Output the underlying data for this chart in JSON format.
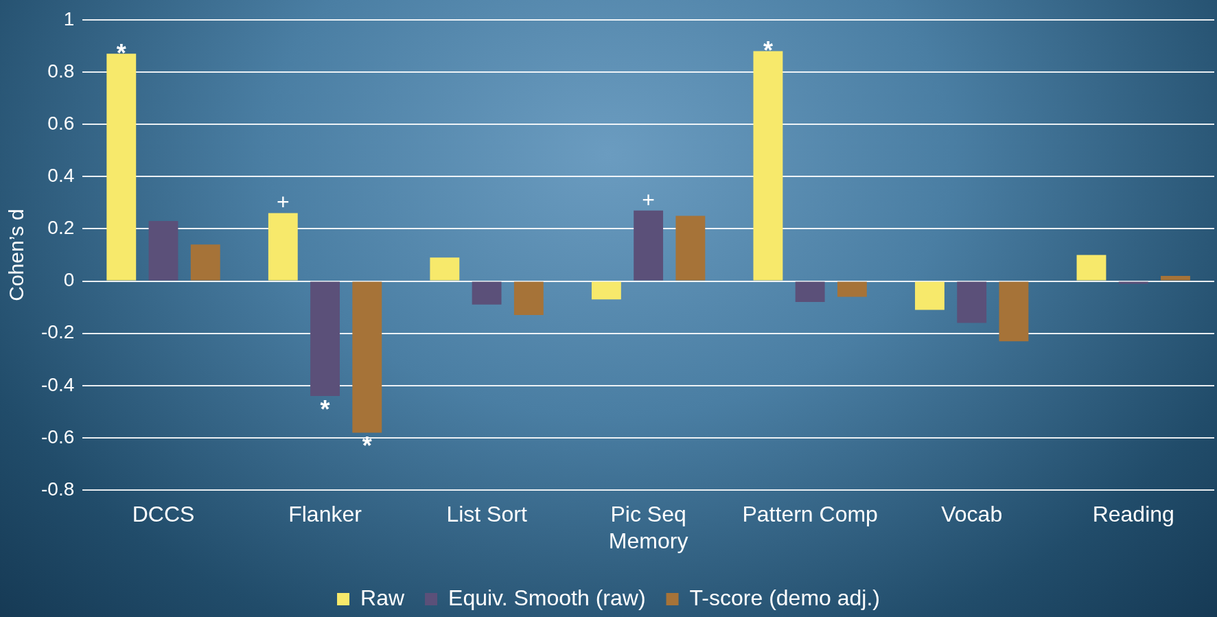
{
  "chart_data": {
    "type": "bar",
    "ylabel": "Cohen’s d",
    "categories": [
      "DCCS",
      "Flanker",
      "List Sort",
      "Pic Seq Memory",
      "Pattern Comp",
      "Vocab",
      "Reading"
    ],
    "series": [
      {
        "name": "Raw",
        "color": "#f7e96b",
        "values": [
          0.87,
          0.26,
          0.09,
          -0.07,
          0.88,
          -0.11,
          0.1
        ]
      },
      {
        "name": "Equiv. Smooth (raw)",
        "color": "#5b5079",
        "values": [
          0.23,
          -0.44,
          -0.09,
          0.27,
          -0.08,
          -0.16,
          -0.01
        ]
      },
      {
        "name": "T-score (demo adj.)",
        "color": "#a67338",
        "values": [
          0.14,
          -0.58,
          -0.13,
          0.25,
          -0.06,
          -0.23,
          0.02
        ]
      }
    ],
    "ylim": [
      -0.8,
      1
    ],
    "yticks": [
      -0.8,
      -0.6,
      -0.4,
      -0.2,
      0,
      0.2,
      0.4,
      0.6,
      0.8,
      1
    ],
    "grid": "y",
    "legend": "bottom",
    "annotations": [
      {
        "text": "*",
        "y": 0.87
      },
      {
        "text": "+",
        "y": 0.26
      },
      {
        "text": "*",
        "y": -0.44
      },
      {
        "text": "*",
        "y": -0.58
      },
      {
        "text": "+",
        "y": 0.27
      },
      {
        "text": "*",
        "y": 0.88
      }
    ]
  }
}
